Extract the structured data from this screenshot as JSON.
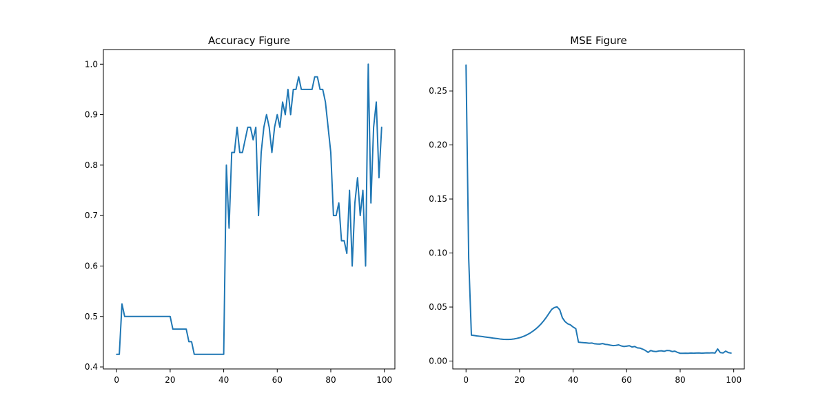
{
  "chart_data": [
    {
      "type": "line",
      "title": "Accuracy Figure",
      "xlabel": "",
      "ylabel": "",
      "xlim": [
        -4.95,
        103.95
      ],
      "ylim": [
        0.396,
        1.029
      ],
      "xticks": [
        0,
        20,
        40,
        60,
        80,
        100
      ],
      "yticks": [
        0.4,
        0.5,
        0.6,
        0.7,
        0.8,
        0.9,
        1.0
      ],
      "xtick_labels": [
        "0",
        "20",
        "40",
        "60",
        "80",
        "100"
      ],
      "ytick_labels": [
        "0.4",
        "0.5",
        "0.6",
        "0.7",
        "0.8",
        "0.9",
        "1.0"
      ],
      "grid": false,
      "color": "#1f77b4",
      "series": [
        {
          "x": [
            0,
            1,
            2,
            3,
            4,
            5,
            6,
            7,
            8,
            9,
            10,
            11,
            12,
            13,
            14,
            15,
            16,
            17,
            18,
            19,
            20,
            21,
            22,
            23,
            24,
            25,
            26,
            27,
            28,
            29,
            30,
            31,
            32,
            33,
            34,
            35,
            36,
            37,
            38,
            39,
            40,
            41,
            42,
            43,
            44,
            45,
            46,
            47,
            48,
            49,
            50,
            51,
            52,
            53,
            54,
            55,
            56,
            57,
            58,
            59,
            60,
            61,
            62,
            63,
            64,
            65,
            66,
            67,
            68,
            69,
            70,
            71,
            72,
            73,
            74,
            75,
            76,
            77,
            78,
            79,
            80,
            81,
            82,
            83,
            84,
            85,
            86,
            87,
            88,
            89,
            90,
            91,
            92,
            93,
            94,
            95,
            96,
            97,
            98,
            99
          ],
          "values": [
            0.425,
            0.425,
            0.525,
            0.5,
            0.5,
            0.5,
            0.5,
            0.5,
            0.5,
            0.5,
            0.5,
            0.5,
            0.5,
            0.5,
            0.5,
            0.5,
            0.5,
            0.5,
            0.5,
            0.5,
            0.5,
            0.475,
            0.475,
            0.475,
            0.475,
            0.475,
            0.475,
            0.45,
            0.45,
            0.425,
            0.425,
            0.425,
            0.425,
            0.425,
            0.425,
            0.425,
            0.425,
            0.425,
            0.425,
            0.425,
            0.425,
            0.8,
            0.675,
            0.825,
            0.825,
            0.875,
            0.825,
            0.825,
            0.85,
            0.875,
            0.875,
            0.85,
            0.875,
            0.7,
            0.825,
            0.875,
            0.9,
            0.875,
            0.825,
            0.875,
            0.9,
            0.875,
            0.925,
            0.9,
            0.95,
            0.9,
            0.95,
            0.95,
            0.975,
            0.95,
            0.95,
            0.95,
            0.95,
            0.95,
            0.975,
            0.975,
            0.95,
            0.95,
            0.925,
            0.875,
            0.825,
            0.7,
            0.7,
            0.725,
            0.65,
            0.65,
            0.625,
            0.75,
            0.6,
            0.725,
            0.775,
            0.7,
            0.75,
            0.6,
            1.0,
            0.725,
            0.875,
            0.925,
            0.775,
            0.875
          ]
        }
      ]
    },
    {
      "type": "line",
      "title": "MSE Figure",
      "xlabel": "",
      "ylabel": "",
      "xlim": [
        -4.95,
        103.95
      ],
      "ylim": [
        -0.0073,
        0.2883
      ],
      "xticks": [
        0,
        20,
        40,
        60,
        80,
        100
      ],
      "yticks": [
        0.0,
        0.05,
        0.1,
        0.15,
        0.2,
        0.25
      ],
      "xtick_labels": [
        "0",
        "20",
        "40",
        "60",
        "80",
        "100"
      ],
      "ytick_labels": [
        "0.00",
        "0.05",
        "0.10",
        "0.15",
        "0.20",
        "0.25"
      ],
      "grid": false,
      "color": "#1f77b4",
      "series": [
        {
          "x": [
            0,
            1,
            2,
            3,
            4,
            5,
            6,
            7,
            8,
            9,
            10,
            11,
            12,
            13,
            14,
            15,
            16,
            17,
            18,
            19,
            20,
            21,
            22,
            23,
            24,
            25,
            26,
            27,
            28,
            29,
            30,
            31,
            32,
            33,
            34,
            35,
            36,
            37,
            38,
            39,
            40,
            41,
            42,
            43,
            44,
            45,
            46,
            47,
            48,
            49,
            50,
            51,
            52,
            53,
            54,
            55,
            56,
            57,
            58,
            59,
            60,
            61,
            62,
            63,
            64,
            65,
            66,
            67,
            68,
            69,
            70,
            71,
            72,
            73,
            74,
            75,
            76,
            77,
            78,
            79,
            80,
            81,
            82,
            83,
            84,
            85,
            86,
            87,
            88,
            89,
            90,
            91,
            92,
            93,
            94,
            95,
            96,
            97,
            98,
            99
          ],
          "values": [
            0.274,
            0.095,
            0.024,
            0.0237,
            0.0233,
            0.023,
            0.0227,
            0.0223,
            0.022,
            0.0217,
            0.0213,
            0.021,
            0.0207,
            0.0203,
            0.0201,
            0.02,
            0.02,
            0.0202,
            0.0205,
            0.021,
            0.0216,
            0.0224,
            0.0234,
            0.0246,
            0.026,
            0.0277,
            0.0296,
            0.0318,
            0.0343,
            0.0372,
            0.0405,
            0.0442,
            0.0478,
            0.0495,
            0.0502,
            0.0475,
            0.04,
            0.0365,
            0.0345,
            0.0335,
            0.0315,
            0.03,
            0.0175,
            0.0172,
            0.017,
            0.0168,
            0.0165,
            0.0167,
            0.016,
            0.0158,
            0.0157,
            0.0162,
            0.0155,
            0.0152,
            0.0147,
            0.0143,
            0.0145,
            0.015,
            0.014,
            0.0135,
            0.0138,
            0.0142,
            0.013,
            0.0135,
            0.0122,
            0.012,
            0.011,
            0.0098,
            0.008,
            0.0098,
            0.009,
            0.0088,
            0.0093,
            0.0095,
            0.009,
            0.0098,
            0.0097,
            0.0088,
            0.0092,
            0.008,
            0.0072,
            0.0072,
            0.0073,
            0.0072,
            0.0074,
            0.0073,
            0.0074,
            0.0075,
            0.0073,
            0.0074,
            0.0076,
            0.0075,
            0.0077,
            0.0074,
            0.0112,
            0.0078,
            0.0075,
            0.0092,
            0.0078,
            0.0074
          ]
        }
      ]
    }
  ]
}
